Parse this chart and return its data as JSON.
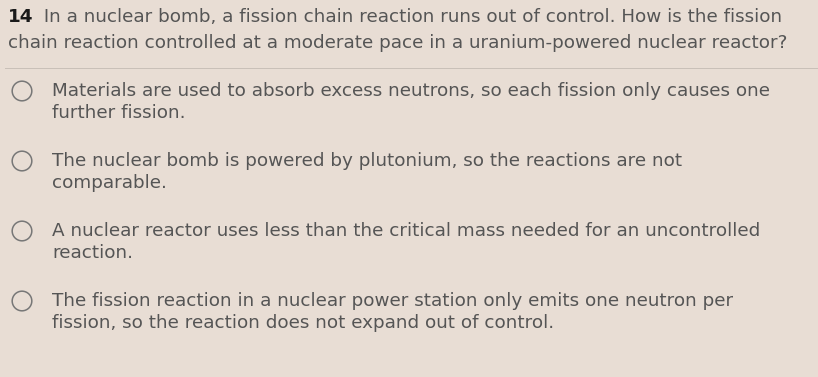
{
  "background_color": "#e8ddd4",
  "question_number": "14",
  "question_text_line1": " In a nuclear bomb, a fission chain reaction runs out of control. How is the fission",
  "question_text_line2": "chain reaction controlled at a moderate pace in a uranium-powered nuclear reactor?",
  "options": [
    {
      "line1": "Materials are used to absorb excess neutrons, so each fission only causes one",
      "line2": "further fission."
    },
    {
      "line1": "The nuclear bomb is powered by plutonium, so the reactions are not",
      "line2": "comparable."
    },
    {
      "line1": "A nuclear reactor uses less than the critical mass needed for an uncontrolled",
      "line2": "reaction."
    },
    {
      "line1": "The fission reaction in a nuclear power station only emits one neutron per",
      "line2": "fission, so the reaction does not expand out of control."
    }
  ],
  "text_color": "#555555",
  "question_number_color": "#1a1a1a",
  "divider_color": "#c0b8b0",
  "circle_color": "#777777",
  "question_fontsize": 13.2,
  "option_fontsize": 13.2
}
